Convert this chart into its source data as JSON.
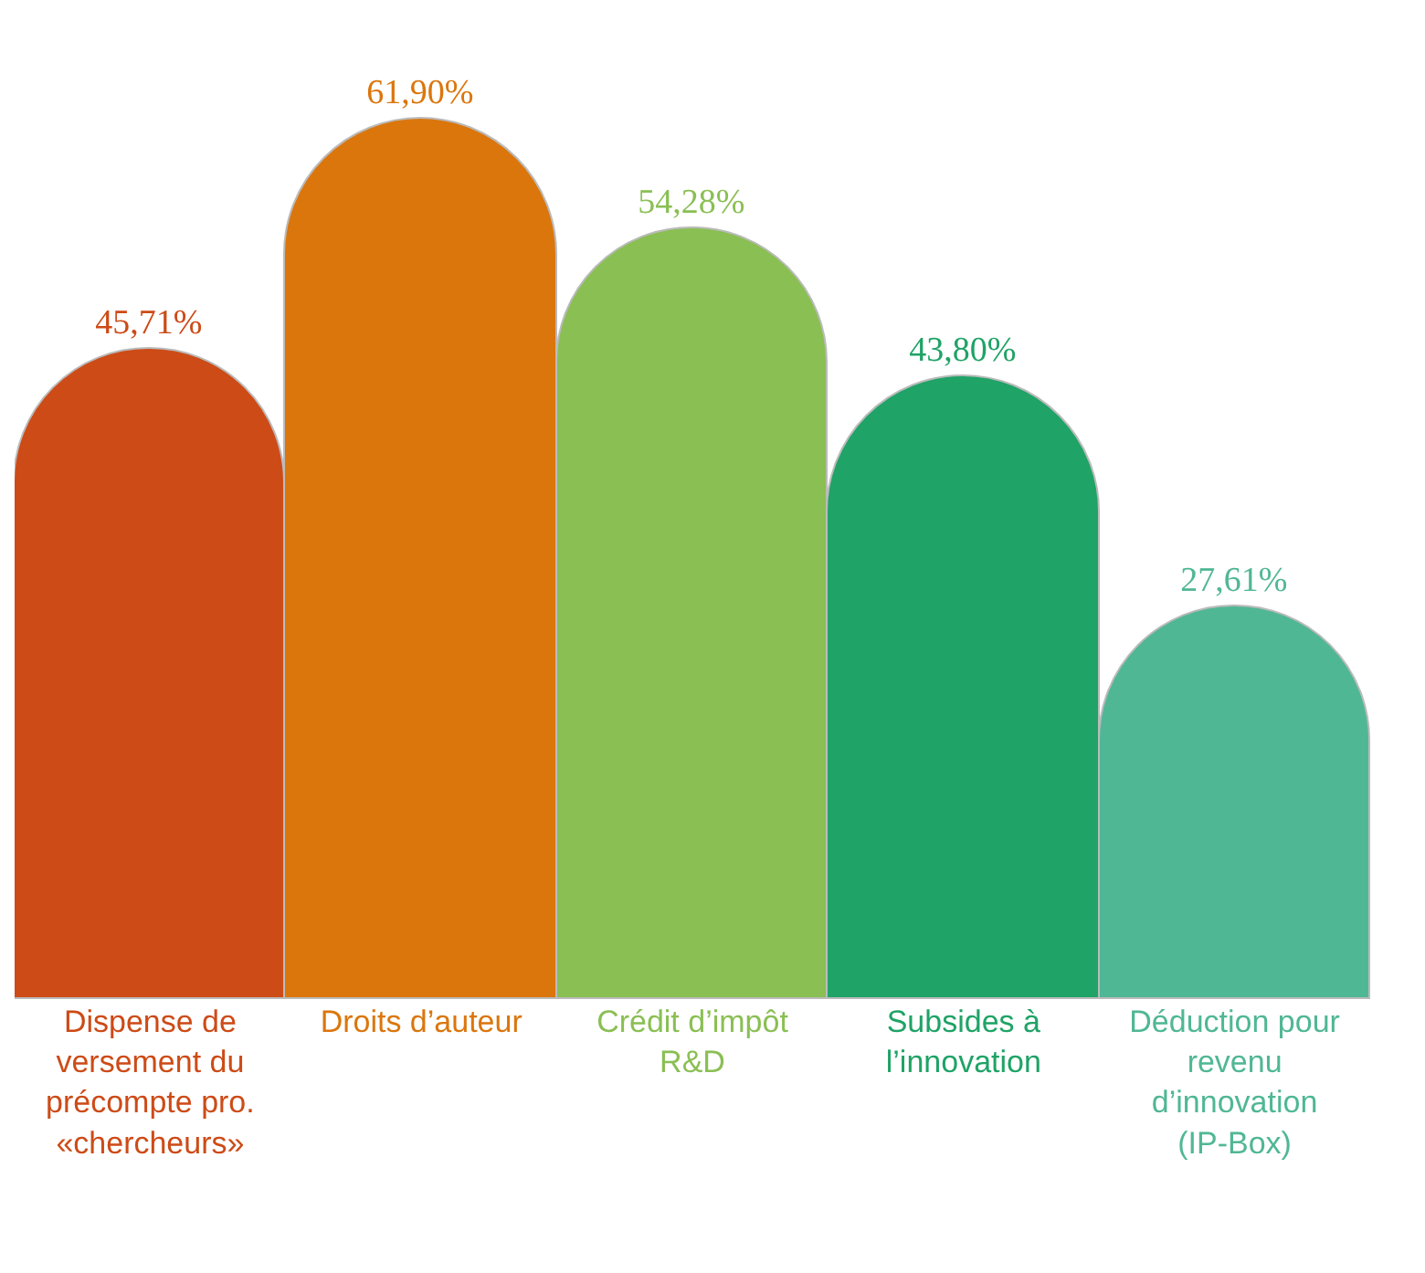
{
  "chart_data": {
    "type": "bar",
    "categories": [
      "Dispense de versement du précompte pro. «chercheurs»",
      "Droits d’auteur",
      "Crédit d’impôt R&D",
      "Subsides à l’innovation",
      "Déduction pour revenu d’innovation (IP-Box)"
    ],
    "values": [
      45.71,
      61.9,
      54.28,
      43.8,
      27.61
    ],
    "value_labels": [
      "45,71%",
      "61,90%",
      "54,28%",
      "43,80%",
      "27,61%"
    ],
    "colors": [
      "#cd4b17",
      "#db760d",
      "#8abf53",
      "#1fa366",
      "#50b794"
    ],
    "tick_labels": "x"
  }
}
